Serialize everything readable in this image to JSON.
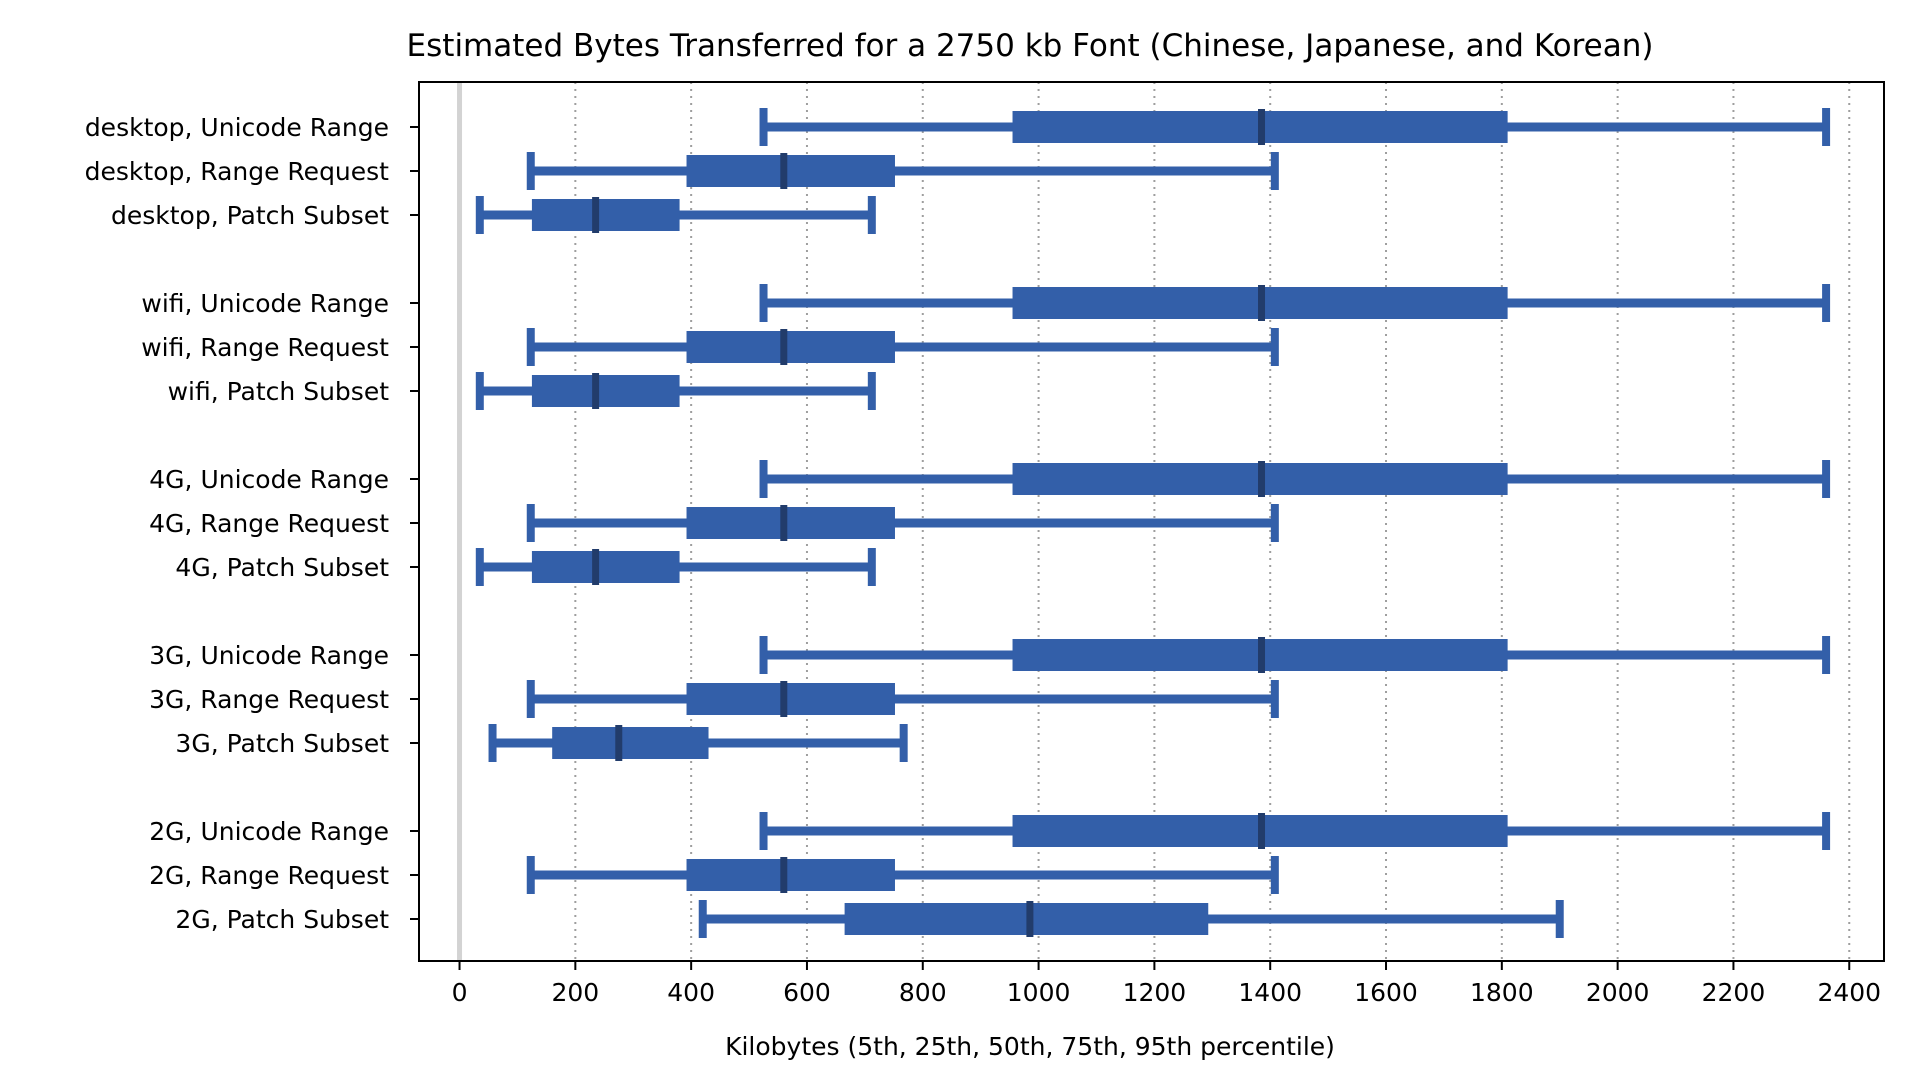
{
  "chart_data": {
    "type": "box",
    "title": "Estimated Bytes Transferred for a 2750 kb Font (Chinese, Japanese, and Korean)",
    "xlabel": "Kilobytes (5th, 25th, 50th, 75th, 95th percentile)",
    "ylabel": "",
    "xlim": [
      -70,
      2460
    ],
    "xticks": [
      0,
      200,
      400,
      600,
      800,
      1000,
      1200,
      1400,
      1600,
      1800,
      2000,
      2200,
      2400
    ],
    "grid": "x-dotted",
    "colors": {
      "box": "#335fa9",
      "median": "#223c6b",
      "grid": "#9e9e9e",
      "zero_line": "#d3d3d3"
    },
    "groups": [
      {
        "name": "desktop",
        "rows": [
          {
            "label": "desktop, Unicode Range",
            "p5": 525,
            "p25": 955,
            "p50": 1385,
            "p75": 1810,
            "p95": 2360
          },
          {
            "label": "desktop, Range Request",
            "p5": 123,
            "p25": 392,
            "p50": 560,
            "p75": 752,
            "p95": 1408
          },
          {
            "label": "desktop, Patch Subset",
            "p5": 35,
            "p25": 125,
            "p50": 235,
            "p75": 380,
            "p95": 712
          }
        ]
      },
      {
        "name": "wifi",
        "rows": [
          {
            "label": "wifi, Unicode Range",
            "p5": 525,
            "p25": 955,
            "p50": 1385,
            "p75": 1810,
            "p95": 2360
          },
          {
            "label": "wifi, Range Request",
            "p5": 123,
            "p25": 392,
            "p50": 560,
            "p75": 752,
            "p95": 1408
          },
          {
            "label": "wifi, Patch Subset",
            "p5": 35,
            "p25": 125,
            "p50": 235,
            "p75": 380,
            "p95": 712
          }
        ]
      },
      {
        "name": "4G",
        "rows": [
          {
            "label": "4G, Unicode Range",
            "p5": 525,
            "p25": 955,
            "p50": 1385,
            "p75": 1810,
            "p95": 2360
          },
          {
            "label": "4G, Range Request",
            "p5": 123,
            "p25": 392,
            "p50": 560,
            "p75": 752,
            "p95": 1408
          },
          {
            "label": "4G, Patch Subset",
            "p5": 35,
            "p25": 125,
            "p50": 235,
            "p75": 380,
            "p95": 712
          }
        ]
      },
      {
        "name": "3G",
        "rows": [
          {
            "label": "3G, Unicode Range",
            "p5": 525,
            "p25": 955,
            "p50": 1385,
            "p75": 1810,
            "p95": 2360
          },
          {
            "label": "3G, Range Request",
            "p5": 123,
            "p25": 392,
            "p50": 560,
            "p75": 752,
            "p95": 1408
          },
          {
            "label": "3G, Patch Subset",
            "p5": 57,
            "p25": 160,
            "p50": 275,
            "p75": 430,
            "p95": 767
          }
        ]
      },
      {
        "name": "2G",
        "rows": [
          {
            "label": "2G, Unicode Range",
            "p5": 525,
            "p25": 955,
            "p50": 1385,
            "p75": 1810,
            "p95": 2360
          },
          {
            "label": "2G, Range Request",
            "p5": 123,
            "p25": 392,
            "p50": 560,
            "p75": 752,
            "p95": 1408
          },
          {
            "label": "2G, Patch Subset",
            "p5": 420,
            "p25": 665,
            "p50": 985,
            "p75": 1293,
            "p95": 1900
          }
        ]
      }
    ]
  }
}
